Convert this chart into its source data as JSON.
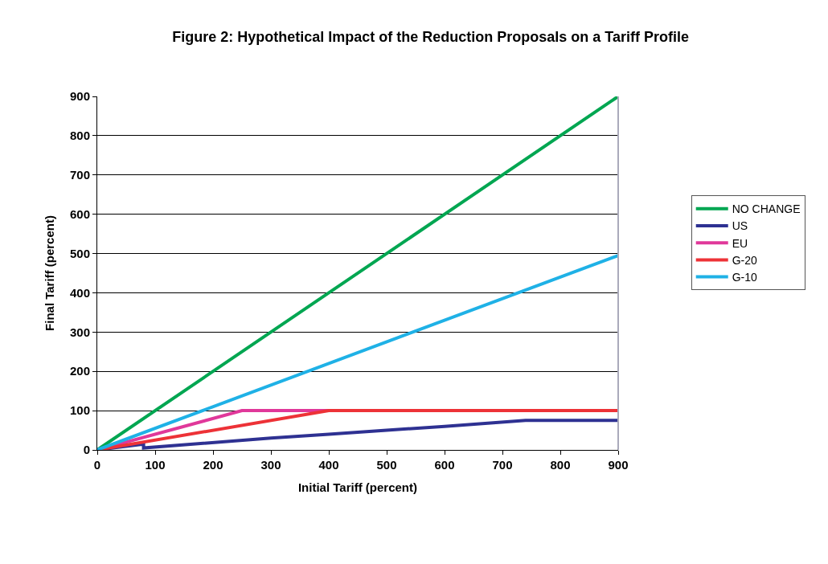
{
  "chart_data": {
    "type": "line",
    "title": "Figure 2: Hypothetical Impact of the Reduction Proposals on a Tariff Profile",
    "xlabel": "Initial Tariff (percent)",
    "ylabel": "Final Tariff (percent)",
    "xlim": [
      0,
      900
    ],
    "xticks": [
      0,
      100,
      200,
      300,
      400,
      500,
      600,
      700,
      800,
      900
    ],
    "ylim": [
      0,
      900
    ],
    "yticks": [
      0,
      100,
      200,
      300,
      400,
      500,
      600,
      700,
      800,
      900
    ],
    "grid": "y",
    "legend": "right",
    "marker": "none",
    "line_style": "solid",
    "series": [
      {
        "name": "NO CHANGE",
        "color": "#00a651",
        "x": [
          0,
          900
        ],
        "values": [
          0,
          900
        ]
      },
      {
        "name": "US",
        "color": "#2e3192",
        "x": [
          0,
          80,
          80,
          300,
          400,
          500,
          600,
          740,
          900
        ],
        "values": [
          0,
          15,
          5,
          30,
          40,
          50,
          60,
          75,
          75
        ]
      },
      {
        "name": "EU",
        "color": "#e0389a",
        "x": [
          0,
          250,
          400
        ],
        "values": [
          0,
          100,
          100
        ]
      },
      {
        "name": "G-20",
        "color": "#ed3237",
        "x": [
          0,
          400,
          900
        ],
        "values": [
          0,
          100,
          100
        ]
      },
      {
        "name": "G-10",
        "color": "#1fb1e6",
        "x": [
          0,
          900
        ],
        "values": [
          0,
          495
        ]
      }
    ]
  }
}
